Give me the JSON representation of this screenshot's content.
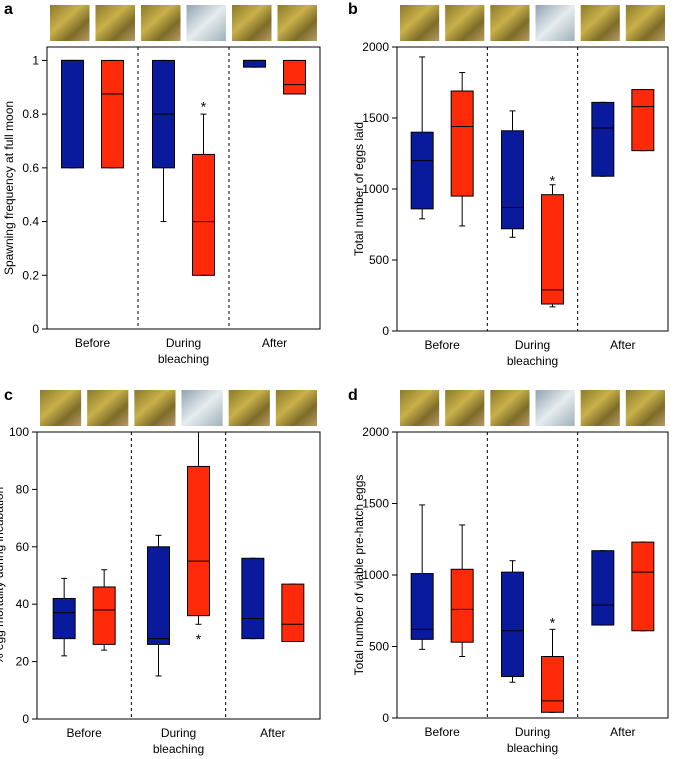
{
  "chart_data": [
    {
      "type": "box",
      "panel_label": "a",
      "ylabel": "Spawning frequency at full moon",
      "categories": [
        "Before",
        "During\nbleaching",
        "After"
      ],
      "ylim": [
        0,
        1.05
      ],
      "yticks": [
        0,
        0.2,
        0.4,
        0.6,
        0.8,
        1
      ],
      "series": [
        {
          "color": "#0a1a9c",
          "boxes": [
            {
              "whislo": 0.6,
              "q1": 0.6,
              "med": 1,
              "q3": 1,
              "whishi": 1
            },
            {
              "whislo": 0.4,
              "q1": 0.6,
              "med": 0.8,
              "q3": 1,
              "whishi": 1
            },
            {
              "whislo": 0.975,
              "q1": 0.975,
              "med": 1,
              "q3": 1,
              "whishi": 1
            }
          ]
        },
        {
          "color": "#ff2a0a",
          "boxes": [
            {
              "whislo": 0.6,
              "q1": 0.6,
              "med": 0.875,
              "q3": 1,
              "whishi": 1
            },
            {
              "whislo": 0.2,
              "q1": 0.2,
              "med": 0.4,
              "q3": 0.65,
              "whishi": 0.8,
              "marker": "*",
              "marker_y": 0.84
            },
            {
              "whislo": 0.875,
              "q1": 0.875,
              "med": 0.91,
              "q3": 1,
              "whishi": 1
            }
          ]
        }
      ]
    },
    {
      "type": "box",
      "panel_label": "b",
      "ylabel": "Total number of eggs laid",
      "categories": [
        "Before",
        "During\nbleaching",
        "After"
      ],
      "ylim": [
        0,
        2000
      ],
      "yticks": [
        0,
        500,
        1000,
        1500,
        2000
      ],
      "series": [
        {
          "color": "#0a1a9c",
          "boxes": [
            {
              "whislo": 790,
              "q1": 860,
              "med": 1200,
              "q3": 1400,
              "whishi": 1930
            },
            {
              "whislo": 660,
              "q1": 720,
              "med": 870,
              "q3": 1410,
              "whishi": 1550
            },
            {
              "whislo": 1090,
              "q1": 1090,
              "med": 1430,
              "q3": 1610,
              "whishi": 1610
            }
          ]
        },
        {
          "color": "#ff2a0a",
          "boxes": [
            {
              "whislo": 740,
              "q1": 950,
              "med": 1440,
              "q3": 1690,
              "whishi": 1820
            },
            {
              "whislo": 170,
              "q1": 190,
              "med": 290,
              "q3": 960,
              "whishi": 1030,
              "marker": "*",
              "marker_y": 1080
            },
            {
              "whislo": 1270,
              "q1": 1270,
              "med": 1580,
              "q3": 1700,
              "whishi": 1700
            }
          ]
        }
      ]
    },
    {
      "type": "box",
      "panel_label": "c",
      "ylabel": "% egg mortality during incubation",
      "categories": [
        "Before",
        "During\nbleaching",
        "After"
      ],
      "ylim": [
        0,
        100
      ],
      "yticks": [
        0,
        20,
        40,
        60,
        80,
        100
      ],
      "series": [
        {
          "color": "#0a1a9c",
          "boxes": [
            {
              "whislo": 22,
              "q1": 28,
              "med": 37,
              "q3": 42,
              "whishi": 49
            },
            {
              "whislo": 15,
              "q1": 26,
              "med": 28,
              "q3": 60,
              "whishi": 64
            },
            {
              "whislo": 28,
              "q1": 28,
              "med": 35,
              "q3": 56,
              "whishi": 56
            }
          ]
        },
        {
          "color": "#ff2a0a",
          "boxes": [
            {
              "whislo": 24,
              "q1": 26,
              "med": 38,
              "q3": 46,
              "whishi": 52
            },
            {
              "whislo": 33,
              "q1": 36,
              "med": 55,
              "q3": 88,
              "whishi": 100,
              "marker": "*",
              "marker_y": 29
            },
            {
              "whislo": 27,
              "q1": 27,
              "med": 33,
              "q3": 47,
              "whishi": 47
            }
          ]
        }
      ]
    },
    {
      "type": "box",
      "panel_label": "d",
      "ylabel": "Total number of viable pre-hatch eggs",
      "categories": [
        "Before",
        "During\nbleaching",
        "After"
      ],
      "ylim": [
        0,
        2000
      ],
      "yticks": [
        0,
        500,
        1000,
        1500,
        2000
      ],
      "series": [
        {
          "color": "#0a1a9c",
          "boxes": [
            {
              "whislo": 480,
              "q1": 550,
              "med": 620,
              "q3": 1010,
              "whishi": 1490
            },
            {
              "whislo": 250,
              "q1": 290,
              "med": 610,
              "q3": 1020,
              "whishi": 1100
            },
            {
              "whislo": 650,
              "q1": 650,
              "med": 790,
              "q3": 1170,
              "whishi": 1170
            }
          ]
        },
        {
          "color": "#ff2a0a",
          "boxes": [
            {
              "whislo": 430,
              "q1": 530,
              "med": 760,
              "q3": 1040,
              "whishi": 1350
            },
            {
              "whislo": 40,
              "q1": 40,
              "med": 120,
              "q3": 430,
              "whishi": 620,
              "marker": "*",
              "marker_y": 690
            },
            {
              "whislo": 610,
              "q1": 610,
              "med": 1020,
              "q3": 1230,
              "whishi": 1230
            }
          ]
        }
      ]
    }
  ]
}
